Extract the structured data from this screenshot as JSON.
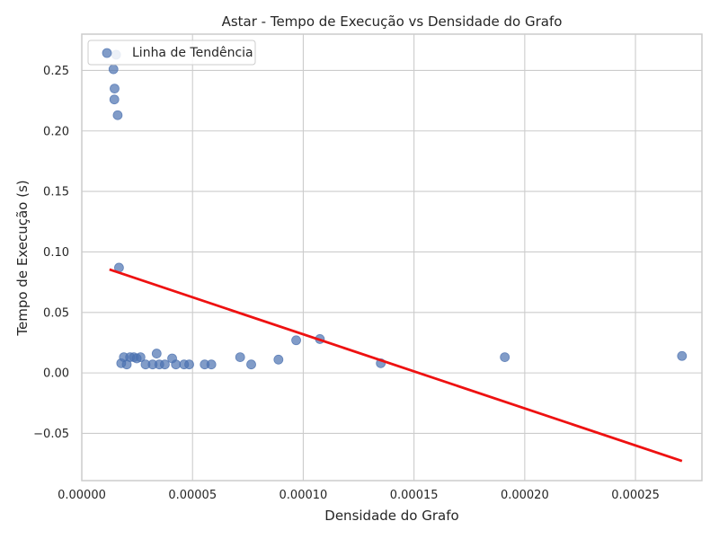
{
  "chart_data": {
    "type": "scatter",
    "title": "Astar - Tempo de Execução vs Densidade do Grafo",
    "xlabel": "Densidade do Grafo",
    "ylabel": "Tempo de Execução (s)",
    "xlim": [
      0.0,
      0.00028
    ],
    "ylim": [
      -0.089,
      0.28
    ],
    "x_ticks": [
      0.0,
      5e-05,
      0.0001,
      0.00015,
      0.0002,
      0.00025
    ],
    "x_tick_labels": [
      "0.00000",
      "0.00005",
      "0.00010",
      "0.00015",
      "0.00020",
      "0.00025"
    ],
    "y_ticks": [
      -0.05,
      0.0,
      0.05,
      0.1,
      0.15,
      0.2,
      0.25
    ],
    "y_tick_labels": [
      "−0.05",
      "0.00",
      "0.05",
      "0.10",
      "0.15",
      "0.20",
      "0.25"
    ],
    "grid": true,
    "legend": {
      "location": "upper-left",
      "entries": [
        "Linha de Tendência"
      ]
    },
    "series": [
      {
        "kind": "scatter",
        "color": "#4c72b0",
        "points": [
          {
            "x": 1.55e-05,
            "y": 0.263
          },
          {
            "x": 1.43e-05,
            "y": 0.251
          },
          {
            "x": 1.48e-05,
            "y": 0.235
          },
          {
            "x": 1.47e-05,
            "y": 0.226
          },
          {
            "x": 1.62e-05,
            "y": 0.213
          },
          {
            "x": 1.68e-05,
            "y": 0.087
          },
          {
            "x": 1.78e-05,
            "y": 0.008
          },
          {
            "x": 1.9e-05,
            "y": 0.013
          },
          {
            "x": 2.03e-05,
            "y": 0.007
          },
          {
            "x": 2.18e-05,
            "y": 0.013
          },
          {
            "x": 2.35e-05,
            "y": 0.013
          },
          {
            "x": 2.48e-05,
            "y": 0.012
          },
          {
            "x": 2.65e-05,
            "y": 0.013
          },
          {
            "x": 2.88e-05,
            "y": 0.007
          },
          {
            "x": 3.2e-05,
            "y": 0.007
          },
          {
            "x": 3.38e-05,
            "y": 0.016
          },
          {
            "x": 3.5e-05,
            "y": 0.007
          },
          {
            "x": 3.75e-05,
            "y": 0.007
          },
          {
            "x": 4.08e-05,
            "y": 0.012
          },
          {
            "x": 4.25e-05,
            "y": 0.007
          },
          {
            "x": 4.62e-05,
            "y": 0.007
          },
          {
            "x": 4.85e-05,
            "y": 0.007
          },
          {
            "x": 5.55e-05,
            "y": 0.007
          },
          {
            "x": 5.85e-05,
            "y": 0.007
          },
          {
            "x": 7.15e-05,
            "y": 0.013
          },
          {
            "x": 7.65e-05,
            "y": 0.007
          },
          {
            "x": 8.88e-05,
            "y": 0.011
          },
          {
            "x": 9.68e-05,
            "y": 0.027
          },
          {
            "x": 0.0001075,
            "y": 0.028
          },
          {
            "x": 0.000135,
            "y": 0.008
          },
          {
            "x": 0.000191,
            "y": 0.013
          },
          {
            "x": 0.000271,
            "y": 0.014
          }
        ]
      },
      {
        "kind": "line",
        "name": "Linha de Tendência",
        "color": "#ee1111",
        "points": [
          {
            "x": 1.25e-05,
            "y": 0.0855
          },
          {
            "x": 0.000271,
            "y": -0.0728
          }
        ]
      }
    ]
  }
}
